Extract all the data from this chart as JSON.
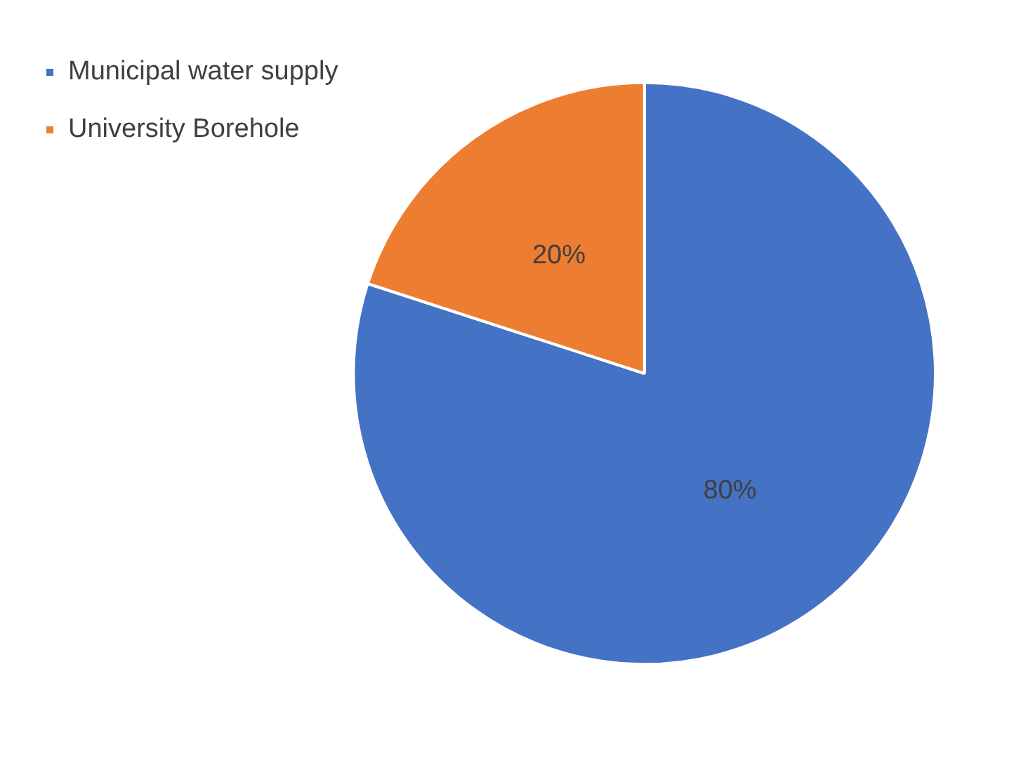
{
  "chart_data": {
    "type": "pie",
    "categories": [
      "Municipal water supply",
      "University Borehole"
    ],
    "values": [
      80,
      20
    ],
    "colors": [
      "#4472c4",
      "#ed7d31"
    ],
    "value_labels": [
      "80%",
      "20%"
    ],
    "legend": "top left"
  }
}
